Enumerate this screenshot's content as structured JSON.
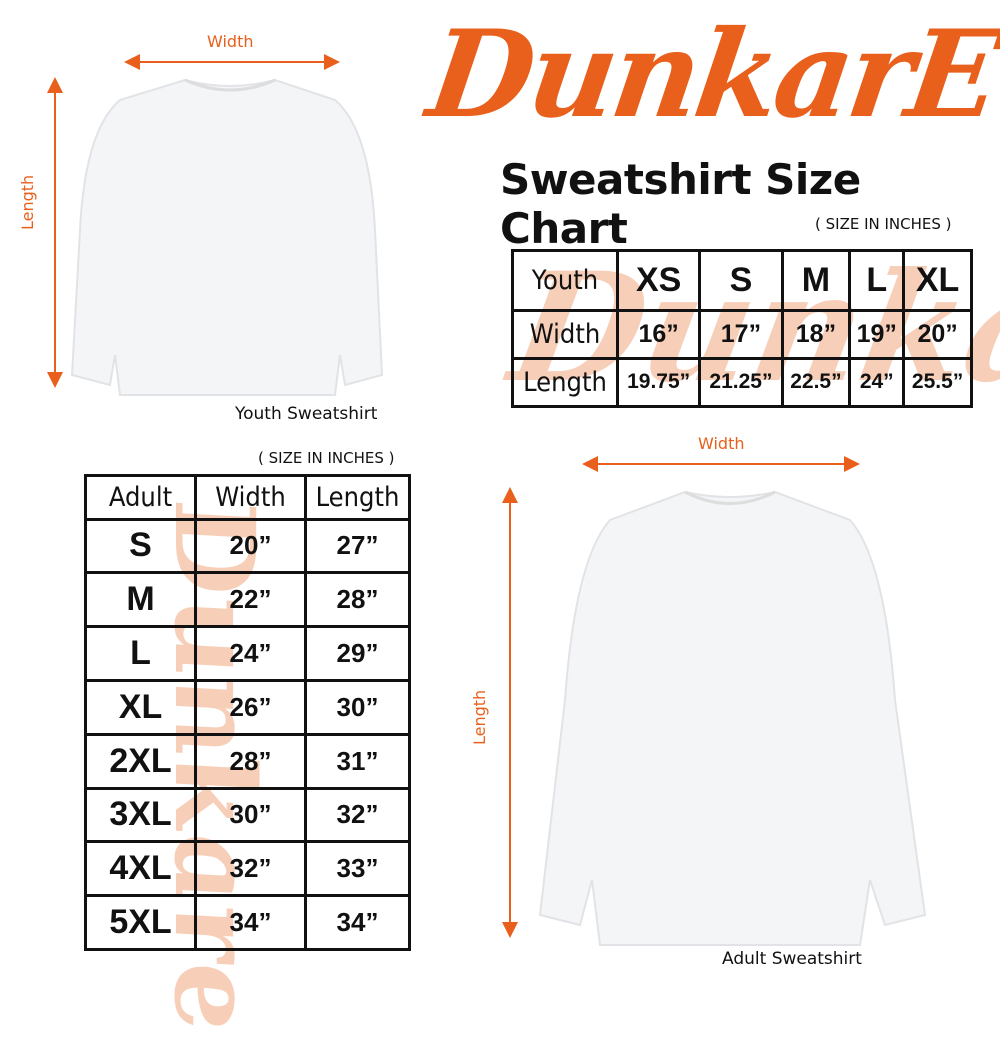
{
  "brand": {
    "logo": "DunkarE",
    "color": "#e8601c"
  },
  "title": "Sweatshirt Size Chart",
  "youth": {
    "note": "( SIZE IN INCHES )",
    "caption": "Youth Sweatshirt",
    "width_label": "Width",
    "length_label": "Length",
    "headers": [
      "Youth",
      "XS",
      "S",
      "M",
      "L",
      "XL"
    ],
    "rows": [
      [
        "Width",
        "16”",
        "17”",
        "18”",
        "19”",
        "20”"
      ],
      [
        "Length",
        "19.75”",
        "21.25”",
        "22.5”",
        "24”",
        "25.5”"
      ]
    ]
  },
  "adult": {
    "note": "( SIZE IN INCHES )",
    "caption": "Adult Sweatshirt",
    "width_label": "Width",
    "length_label": "Length",
    "headers": [
      "Adult",
      "Width",
      "Length"
    ],
    "rows": [
      [
        "S",
        "20”",
        "27”"
      ],
      [
        "M",
        "22”",
        "28”"
      ],
      [
        "L",
        "24”",
        "29”"
      ],
      [
        "XL",
        "26”",
        "30”"
      ],
      [
        "2XL",
        "28”",
        "31”"
      ],
      [
        "3XL",
        "30”",
        "32”"
      ],
      [
        "4XL",
        "32”",
        "33”"
      ],
      [
        "5XL",
        "34”",
        "34”"
      ]
    ]
  }
}
